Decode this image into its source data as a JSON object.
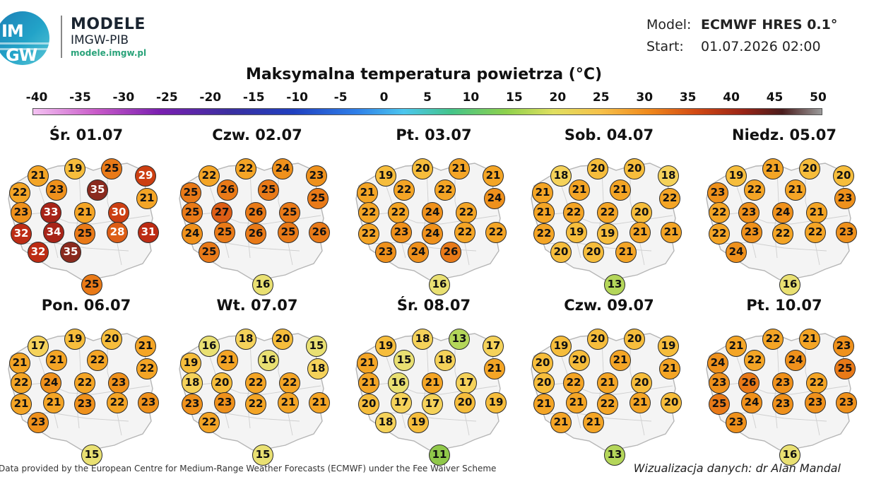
{
  "header": {
    "logo_text_top": "IM",
    "logo_text_bottom": "GW",
    "brand_title": "MODELE",
    "brand_subtitle": "IMGW-PIB",
    "brand_url": "modele.imgw.pl",
    "model_label": "Model:",
    "model_value": "ECMWF HRES 0.1°",
    "start_label": "Start:",
    "start_value": "01.07.2026 02:00"
  },
  "title": "Maksymalna temperatura powietrza (°C)",
  "scale": {
    "ticks": [
      "-40",
      "-35",
      "-30",
      "-25",
      "-20",
      "-15",
      "-10",
      "-5",
      "0",
      "5",
      "10",
      "15",
      "20",
      "25",
      "30",
      "35",
      "40",
      "45",
      "50"
    ],
    "colors": [
      "#f4c2f2",
      "#c85ac8",
      "#7a1fb0",
      "#3a2fa0",
      "#2040c0",
      "#2f7fe8",
      "#4cc6ee",
      "#44c48a",
      "#8ed14c",
      "#e0df60",
      "#f6c14a",
      "#f08a1c",
      "#d24a14",
      "#9a2416",
      "#4a1c1c",
      "#9a9a9a"
    ]
  },
  "days": [
    {
      "label": "Śr. 01.07",
      "temps": [
        "21",
        "19",
        "25",
        "29",
        "22",
        "23",
        "35",
        "21",
        "23",
        "33",
        "21",
        "30",
        "32",
        "34",
        "25",
        "28",
        "31",
        "32",
        "35",
        "25"
      ]
    },
    {
      "label": "Czw. 02.07",
      "temps": [
        "22",
        "22",
        "24",
        "23",
        "25",
        "26",
        "25",
        "25",
        "25",
        "27",
        "26",
        "25",
        "24",
        "25",
        "26",
        "25",
        "26",
        "25",
        "16"
      ]
    },
    {
      "label": "Pt. 03.07",
      "temps": [
        "19",
        "20",
        "21",
        "21",
        "21",
        "22",
        "22",
        "24",
        "22",
        "22",
        "24",
        "22",
        "22",
        "23",
        "24",
        "22",
        "22",
        "23",
        "24",
        "26",
        "16"
      ]
    },
    {
      "label": "Sob. 04.07",
      "temps": [
        "18",
        "20",
        "20",
        "18",
        "21",
        "21",
        "21",
        "22",
        "21",
        "22",
        "22",
        "20",
        "22",
        "19",
        "19",
        "21",
        "21",
        "20",
        "20",
        "21",
        "13"
      ]
    },
    {
      "label": "Niedz. 05.07",
      "temps": [
        "19",
        "21",
        "20",
        "20",
        "23",
        "22",
        "21",
        "23",
        "22",
        "23",
        "24",
        "21",
        "22",
        "23",
        "22",
        "22",
        "23",
        "24",
        "16"
      ]
    },
    {
      "label": "Pon. 06.07",
      "temps": [
        "17",
        "19",
        "20",
        "21",
        "21",
        "21",
        "22",
        "22",
        "22",
        "24",
        "22",
        "23",
        "21",
        "21",
        "23",
        "22",
        "23",
        "23",
        "15"
      ]
    },
    {
      "label": "Wt. 07.07",
      "temps": [
        "16",
        "18",
        "20",
        "15",
        "19",
        "21",
        "16",
        "18",
        "18",
        "20",
        "22",
        "22",
        "23",
        "23",
        "22",
        "21",
        "21",
        "22",
        "15"
      ]
    },
    {
      "label": "Śr. 08.07",
      "temps": [
        "19",
        "18",
        "13",
        "17",
        "21",
        "15",
        "18",
        "21",
        "21",
        "16",
        "21",
        "17",
        "20",
        "17",
        "17",
        "20",
        "19",
        "18",
        "19",
        "11"
      ]
    },
    {
      "label": "Czw. 09.07",
      "temps": [
        "19",
        "20",
        "20",
        "19",
        "20",
        "20",
        "21",
        "21",
        "20",
        "22",
        "21",
        "20",
        "21",
        "21",
        "22",
        "21",
        "20",
        "21",
        "21",
        "13"
      ]
    },
    {
      "label": "Pt. 10.07",
      "temps": [
        "21",
        "22",
        "21",
        "23",
        "24",
        "22",
        "24",
        "25",
        "23",
        "26",
        "23",
        "22",
        "25",
        "24",
        "23",
        "23",
        "23",
        "23",
        "16"
      ]
    }
  ],
  "footer": {
    "credit": "Data provided by the European Centre for Medium-Range Weather Forecasts (ECMWF) under the Fee Waiver Scheme",
    "author": "Wizualizacja danych: dr Alan Mandal"
  }
}
